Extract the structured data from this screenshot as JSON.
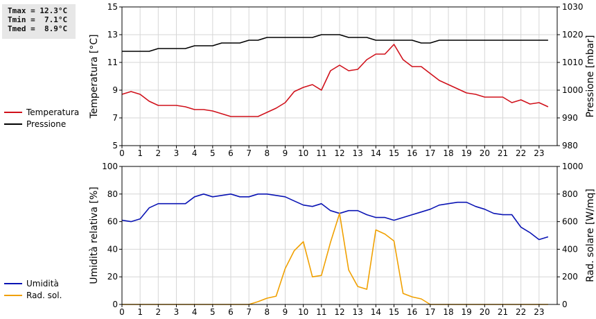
{
  "stats": {
    "tmax": "Tmax = 12.3°C",
    "tmin": "Tmin =  7.1°C",
    "tmed": "Tmed =  8.9°C"
  },
  "legend_top": [
    {
      "label": "Temperatura",
      "color": "#d0101a"
    },
    {
      "label": "Pressione",
      "color": "#000000"
    }
  ],
  "legend_bottom": [
    {
      "label": "Umidità",
      "color": "#0a14b4"
    },
    {
      "label": "Rad. sol.",
      "color": "#f0a000"
    }
  ],
  "chart_data": [
    {
      "type": "line",
      "xlim": [
        0,
        24
      ],
      "x_ticks": [
        0,
        1,
        2,
        3,
        4,
        5,
        6,
        7,
        8,
        9,
        10,
        11,
        12,
        13,
        14,
        15,
        16,
        17,
        18,
        19,
        20,
        21,
        22,
        23
      ],
      "y_left": {
        "label": "Temperatura [°C]",
        "lim": [
          5,
          15
        ],
        "ticks": [
          5,
          7,
          9,
          11,
          13,
          15
        ]
      },
      "y_right": {
        "label": "Pressione [mbar]",
        "lim": [
          980,
          1030
        ],
        "ticks": [
          980,
          990,
          1000,
          1010,
          1020,
          1030
        ]
      },
      "grid": true,
      "series": [
        {
          "name": "Temperatura",
          "axis": "left",
          "color": "#d0101a",
          "x": [
            0,
            0.5,
            1,
            1.5,
            2,
            2.5,
            3,
            3.5,
            4,
            4.5,
            5,
            5.5,
            6,
            6.5,
            7,
            7.5,
            8,
            8.5,
            9,
            9.5,
            10,
            10.5,
            11,
            11.5,
            12,
            12.5,
            13,
            13.5,
            14,
            14.5,
            15,
            15.5,
            16,
            16.5,
            17,
            17.5,
            18,
            18.5,
            19,
            19.5,
            20,
            20.5,
            21,
            21.5,
            22,
            22.5,
            23,
            23.5
          ],
          "y": [
            8.7,
            8.9,
            8.7,
            8.2,
            7.9,
            7.9,
            7.9,
            7.8,
            7.6,
            7.6,
            7.5,
            7.3,
            7.1,
            7.1,
            7.1,
            7.1,
            7.4,
            7.7,
            8.1,
            8.9,
            9.2,
            9.4,
            9.0,
            10.4,
            10.8,
            10.4,
            10.5,
            11.2,
            11.6,
            11.6,
            12.3,
            11.2,
            10.7,
            10.7,
            10.2,
            9.7,
            9.4,
            9.1,
            8.8,
            8.7,
            8.5,
            8.5,
            8.5,
            8.1,
            8.3,
            8.0,
            8.1,
            7.8
          ]
        },
        {
          "name": "Pressione",
          "axis": "right",
          "color": "#000000",
          "x": [
            0,
            0.5,
            1,
            1.5,
            2,
            2.5,
            3,
            3.5,
            4,
            4.5,
            5,
            5.5,
            6,
            6.5,
            7,
            7.5,
            8,
            8.5,
            9,
            9.5,
            10,
            10.5,
            11,
            11.5,
            12,
            12.5,
            13,
            13.5,
            14,
            14.5,
            15,
            15.5,
            16,
            16.5,
            17,
            17.5,
            18,
            18.5,
            19,
            19.5,
            20,
            20.5,
            21,
            21.5,
            22,
            22.5,
            23,
            23.5
          ],
          "y": [
            1014,
            1014,
            1014,
            1014,
            1015,
            1015,
            1015,
            1015,
            1016,
            1016,
            1016,
            1017,
            1017,
            1017,
            1018,
            1018,
            1019,
            1019,
            1019,
            1019,
            1019,
            1019,
            1020,
            1020,
            1020,
            1019,
            1019,
            1019,
            1018,
            1018,
            1018,
            1018,
            1018,
            1017,
            1017,
            1018,
            1018,
            1018,
            1018,
            1018,
            1018,
            1018,
            1018,
            1018,
            1018,
            1018,
            1018,
            1018
          ]
        }
      ]
    },
    {
      "type": "line",
      "xlim": [
        0,
        24
      ],
      "x_ticks": [
        0,
        1,
        2,
        3,
        4,
        5,
        6,
        7,
        8,
        9,
        10,
        11,
        12,
        13,
        14,
        15,
        16,
        17,
        18,
        19,
        20,
        21,
        22,
        23
      ],
      "y_left": {
        "label": "Umidità relativa [%]",
        "lim": [
          0,
          100
        ],
        "ticks": [
          0,
          20,
          40,
          60,
          80,
          100
        ]
      },
      "y_right": {
        "label": "Rad. solare [W/mq]",
        "lim": [
          0,
          1000
        ],
        "ticks": [
          0,
          200,
          400,
          600,
          800,
          1000
        ]
      },
      "grid": true,
      "series": [
        {
          "name": "Umidità",
          "axis": "left",
          "color": "#0a14b4",
          "x": [
            0,
            0.5,
            1,
            1.5,
            2,
            2.5,
            3,
            3.5,
            4,
            4.5,
            5,
            5.5,
            6,
            6.5,
            7,
            7.5,
            8,
            8.5,
            9,
            9.5,
            10,
            10.5,
            11,
            11.5,
            12,
            12.5,
            13,
            13.5,
            14,
            14.5,
            15,
            15.5,
            16,
            16.5,
            17,
            17.5,
            18,
            18.5,
            19,
            19.5,
            20,
            20.5,
            21,
            21.5,
            22,
            22.5,
            23,
            23.5
          ],
          "y": [
            61,
            60,
            62,
            70,
            73,
            73,
            73,
            73,
            78,
            80,
            78,
            79,
            80,
            78,
            78,
            80,
            80,
            79,
            78,
            75,
            72,
            71,
            73,
            68,
            66,
            68,
            68,
            65,
            63,
            63,
            61,
            63,
            65,
            67,
            69,
            72,
            73,
            74,
            74,
            71,
            69,
            66,
            65,
            65,
            56,
            52,
            47,
            49
          ]
        },
        {
          "name": "Rad. sol.",
          "axis": "right",
          "color": "#f0a000",
          "x": [
            0,
            0.5,
            1,
            1.5,
            2,
            2.5,
            3,
            3.5,
            4,
            4.5,
            5,
            5.5,
            6,
            6.5,
            7,
            7.5,
            8,
            8.5,
            9,
            9.5,
            10,
            10.5,
            11,
            11.5,
            12,
            12.5,
            13,
            13.5,
            14,
            14.5,
            15,
            15.5,
            16,
            16.5,
            17,
            17.5,
            18,
            18.5,
            19,
            19.5,
            20,
            20.5,
            21,
            21.5,
            22,
            22.5,
            23,
            23.5
          ],
          "y": [
            0,
            0,
            0,
            0,
            0,
            0,
            0,
            0,
            0,
            0,
            0,
            0,
            0,
            0,
            0,
            20,
            45,
            60,
            260,
            390,
            455,
            200,
            210,
            450,
            660,
            250,
            130,
            110,
            540,
            510,
            460,
            80,
            55,
            40,
            0,
            0,
            0,
            0,
            0,
            0,
            0,
            0,
            0,
            0,
            0,
            0,
            0,
            0
          ]
        }
      ]
    }
  ]
}
